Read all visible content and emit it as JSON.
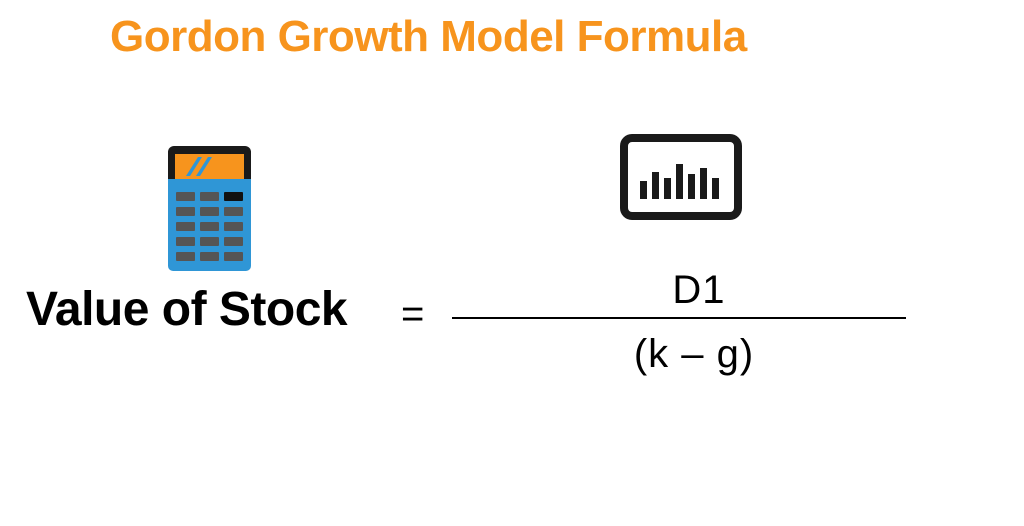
{
  "title": "Gordon Growth Model Formula",
  "formula": {
    "lhs": "Value of Stock",
    "equals": "=",
    "numerator": "D1",
    "denominator": "(k – g)"
  },
  "icons": {
    "left": "calculator-icon",
    "right": "bar-chart-monitor-icon"
  },
  "colors": {
    "accent": "#f7941d",
    "calculator_body": "#2f96d6",
    "calculator_keys": "#555555",
    "text": "#000000"
  }
}
